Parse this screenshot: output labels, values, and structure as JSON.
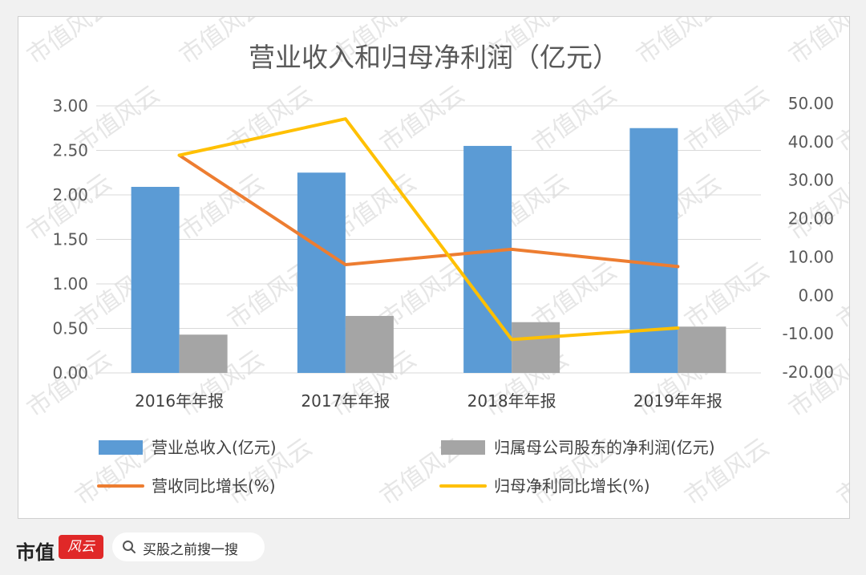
{
  "chart_data": {
    "type": "bar",
    "title": "营业收入和归母净利润（亿元）",
    "categories": [
      "2016年年报",
      "2017年年报",
      "2018年年报",
      "2019年年报"
    ],
    "y_left": {
      "ylim": [
        0,
        3.0
      ],
      "ticks": [
        "0.00",
        "0.50",
        "1.00",
        "1.50",
        "2.00",
        "2.50",
        "3.00"
      ]
    },
    "y_right": {
      "ylim": [
        -20,
        50
      ],
      "ticks": [
        "-20.00",
        "-10.00",
        "0.00",
        "10.00",
        "20.00",
        "30.00",
        "40.00",
        "50.00"
      ]
    },
    "grid": true,
    "legend_position": "bottom",
    "series": [
      {
        "name": "营业总收入(亿元)",
        "type": "bar",
        "axis": "left",
        "color": "#5b9bd5",
        "values": [
          2.09,
          2.25,
          2.55,
          2.75
        ]
      },
      {
        "name": "归属母公司股东的净利润(亿元)",
        "type": "bar",
        "axis": "left",
        "color": "#a5a5a5",
        "values": [
          0.43,
          0.64,
          0.57,
          0.52
        ]
      },
      {
        "name": "营收同比增长(%)",
        "type": "line",
        "axis": "right",
        "color": "#ed7d31",
        "values": [
          36.5,
          8.0,
          12.0,
          7.5
        ]
      },
      {
        "name": "归母净利同比增长(%)",
        "type": "line",
        "axis": "right",
        "color": "#ffc000",
        "values": [
          36.5,
          46.0,
          -11.5,
          -8.5
        ]
      }
    ]
  },
  "watermark": "市值风云",
  "footer": {
    "brand_name": "市值",
    "brand_logo": "风云",
    "search_icon": "search-icon",
    "search_text": "买股之前搜一搜"
  }
}
